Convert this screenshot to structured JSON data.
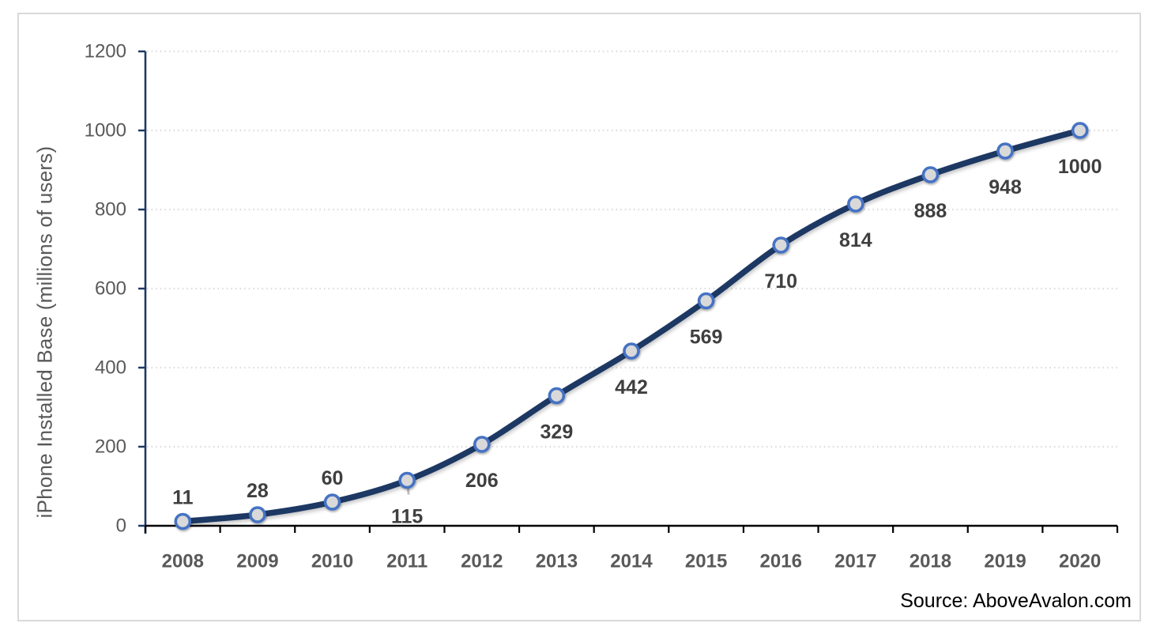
{
  "chart_data": {
    "type": "line",
    "title": "",
    "xlabel": "",
    "ylabel": "iPhone Installed Base (millions of users)",
    "categories": [
      "2008",
      "2009",
      "2010",
      "2011",
      "2012",
      "2013",
      "2014",
      "2015",
      "2016",
      "2017",
      "2018",
      "2019",
      "2020"
    ],
    "series": [
      {
        "name": "iPhone Installed Base",
        "values": [
          11,
          28,
          60,
          115,
          206,
          329,
          442,
          569,
          710,
          814,
          888,
          948,
          1000
        ]
      }
    ],
    "data_labels": [
      "11",
      "28",
      "60",
      "115",
      "206",
      "329",
      "442",
      "569",
      "710",
      "814",
      "888",
      "948",
      "1000"
    ],
    "label_positions": [
      "above",
      "above",
      "above",
      "below",
      "below",
      "below",
      "below",
      "below",
      "below",
      "below",
      "below",
      "below",
      "below"
    ],
    "y_ticks": [
      0,
      200,
      400,
      600,
      800,
      1000,
      1200
    ],
    "ylim": [
      0,
      1200
    ],
    "grid": "horizontal-dotted",
    "legend": "none",
    "smoothed_line": true,
    "source": "Source: AboveAvalon.com",
    "colors": {
      "line": "#1f3864",
      "marker_fill": "#d9d9d9",
      "marker_stroke": "#4472c4",
      "gridline": "#d9d9d9",
      "y_axis": "#1f3864",
      "x_axis": "#000000",
      "tick_label": "#595959",
      "data_label": "#3f3f3f",
      "axis_title": "#595959",
      "source_text": "#000000",
      "frame_border": "#d9d9d9"
    }
  }
}
